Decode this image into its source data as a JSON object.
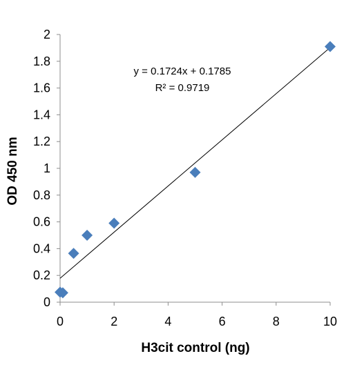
{
  "chart_data": {
    "type": "scatter",
    "title": "",
    "xlabel": "H3cit control (ng)",
    "ylabel": "OD 450 nm",
    "xlim": [
      0,
      10
    ],
    "ylim": [
      0,
      2
    ],
    "x_ticks": [
      "0",
      "2",
      "4",
      "6",
      "8",
      "10"
    ],
    "y_ticks": [
      "0",
      "0.2",
      "0.4",
      "0.6",
      "0.8",
      "1",
      "1.2",
      "1.4",
      "1.6",
      "1.8",
      "2"
    ],
    "grid": false,
    "legend": "none",
    "series": [
      {
        "marker": "diamond",
        "color": "#4a7ebb",
        "points": [
          {
            "x": 0,
            "y": 0.075
          },
          {
            "x": 0.1,
            "y": 0.07
          },
          {
            "x": 0.5,
            "y": 0.365
          },
          {
            "x": 1,
            "y": 0.5
          },
          {
            "x": 2,
            "y": 0.59
          },
          {
            "x": 5,
            "y": 0.97
          },
          {
            "x": 10,
            "y": 1.91
          }
        ]
      }
    ],
    "trendline": {
      "type": "linear",
      "slope": 0.1724,
      "intercept": 0.1785,
      "color": "#000000",
      "equation_label": "y = 0.1724x + 0.1785",
      "r2_label": "R² = 0.9719"
    }
  }
}
